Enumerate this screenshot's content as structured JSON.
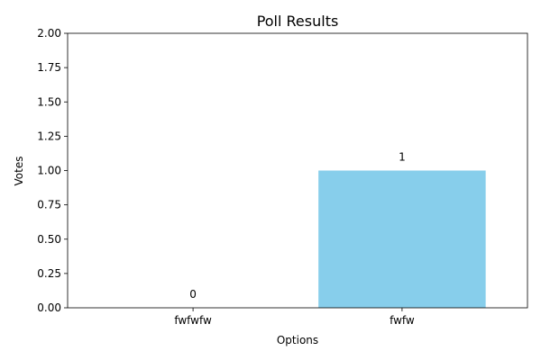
{
  "chart_data": {
    "type": "bar",
    "title": "Poll Results",
    "xlabel": "Options",
    "ylabel": "Votes",
    "categories": [
      "fwfwfw",
      "fwfw"
    ],
    "values": [
      0,
      1
    ],
    "data_labels": [
      "0",
      "1"
    ],
    "ylim": [
      0,
      2
    ],
    "yticks": [
      "0.00",
      "0.25",
      "0.50",
      "0.75",
      "1.00",
      "1.25",
      "1.50",
      "1.75",
      "2.00"
    ],
    "bar_color": "#87ceeb",
    "grid": false,
    "legend": "none"
  }
}
